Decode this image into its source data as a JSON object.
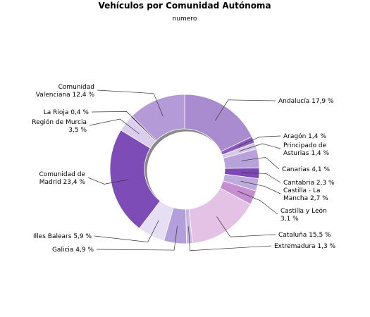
{
  "chart_data": {
    "type": "pie",
    "title": "Vehículos por Comunidad Autónoma",
    "subtitle": "numero",
    "slices": [
      {
        "label": "Andalucía 17,9 %",
        "value": 17.9,
        "color": "#a98bcf"
      },
      {
        "label": "Aragón 1,4 %",
        "value": 1.4,
        "color": "#8a5bbf"
      },
      {
        "label": "Principado de Asturias 1,4 %",
        "value": 1.4,
        "color": "#d5c7ea"
      },
      {
        "label": "Canarias 4,1 %",
        "value": 4.1,
        "color": "#b8a2da"
      },
      {
        "label": "Cantabria 2,3 %",
        "value": 2.3,
        "color": "#7e48b4"
      },
      {
        "label": "Castilla - La Mancha 2,7 %",
        "value": 2.7,
        "color": "#bfaade"
      },
      {
        "label": "Castilla y León 3,1 %",
        "value": 3.1,
        "color": "#c58fd2"
      },
      {
        "label": "Cataluña 15,5 %",
        "value": 15.5,
        "color": "#e4c2e6"
      },
      {
        "label": "Extremadura 1,3 %",
        "value": 1.3,
        "color": "#cbb7e5"
      },
      {
        "label": "Galicia 4,9 %",
        "value": 4.9,
        "color": "#b39fdb"
      },
      {
        "label": "Illes Balears 5,9 %",
        "value": 5.9,
        "color": "#e6def2"
      },
      {
        "label": "Comunidad de Madrid 23,4 %",
        "value": 23.4,
        "color": "#7e4cb6"
      },
      {
        "label": "Región de Murcia 3,5 %",
        "value": 3.5,
        "color": "#dacdee"
      },
      {
        "label": "La Rioja 0,4 %",
        "value": 0.4,
        "color": "#6a3aa0"
      },
      {
        "label": "Comunidad Valenciana 12,4 %",
        "value": 12.4,
        "color": "#b49ad6"
      }
    ]
  }
}
